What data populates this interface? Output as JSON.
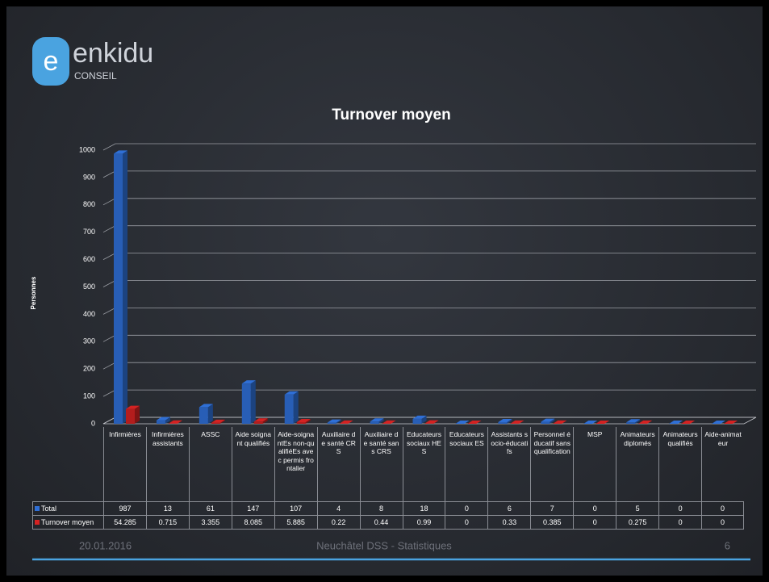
{
  "logo": {
    "name": "enkidu",
    "sub": "CONSEIL"
  },
  "footer": {
    "date": "20.01.2016",
    "center": "Neuchâtel DSS - Statistiques",
    "page": "6"
  },
  "chart_data": {
    "type": "bar3d",
    "title": "Turnover moyen",
    "y_label": "Personnes",
    "categories": [
      "Infirmières",
      "Infirmières assistants",
      "ASSC",
      "Aide soignant qualifiés",
      "Aide-soignantEs non-qualifiéEs avec permis frontalier",
      "Auxiliaire de santé CRS",
      "Auxiliaire de santé sans CRS",
      "Educateurs sociaux HES",
      "Educateurs sociaux ES",
      "Assistants socio-éducatifs",
      "Personnel éducatif sans qualification",
      "MSP",
      "Animateurs diplomés",
      "Animateurs qualifiés",
      "Aide-animateur"
    ],
    "series": [
      {
        "name": "Total",
        "color": "#2f6fd6",
        "values": [
          987,
          13,
          61,
          147,
          107,
          4,
          8,
          18,
          0,
          6,
          7,
          0,
          5,
          0,
          0
        ]
      },
      {
        "name": "Turnover moyen",
        "color": "#d42222",
        "values": [
          54.285,
          0.715,
          3.355,
          8.085,
          5.885,
          0.22,
          0.44,
          0.99,
          0,
          0.33,
          0.385,
          0,
          0.275,
          0,
          0
        ]
      }
    ],
    "ylim": [
      0,
      1000
    ],
    "yticks": [
      0,
      100,
      200,
      300,
      400,
      500,
      600,
      700,
      800,
      900,
      1000
    ],
    "grid": true
  }
}
